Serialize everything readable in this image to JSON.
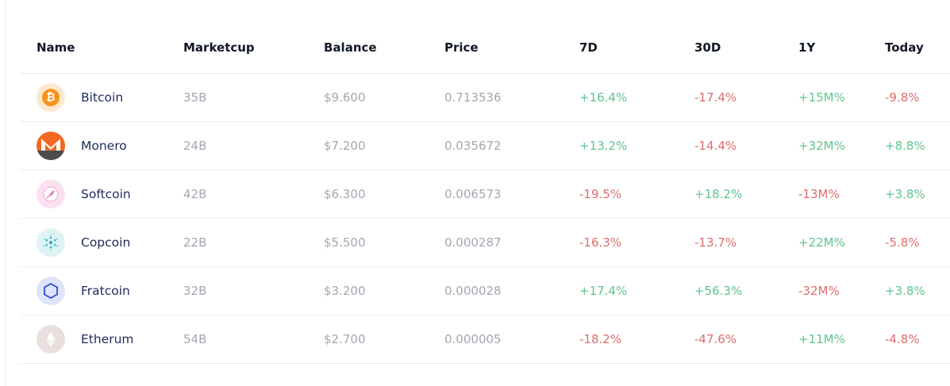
{
  "headers": {
    "name": "Name",
    "marketcup": "Marketcup",
    "balance": "Balance",
    "price": "Price",
    "d7": "7D",
    "d30": "30D",
    "y1": "1Y",
    "today": "Today"
  },
  "rows": [
    {
      "name": "Bitcoin",
      "icon": "bitcoin-icon",
      "marketcup": "35B",
      "balance": "$9.600",
      "price": "0.713536",
      "d7": "+16.4%",
      "d30": "-17.4%",
      "y1": "+15M%",
      "today": "-9.8%"
    },
    {
      "name": "Monero",
      "icon": "monero-icon",
      "marketcup": "24B",
      "balance": "$7.200",
      "price": "0.035672",
      "d7": "+13.2%",
      "d30": "-14.4%",
      "y1": "+32M%",
      "today": "+8.8%"
    },
    {
      "name": "Softcoin",
      "icon": "feather-icon",
      "marketcup": "42B",
      "balance": "$6.300",
      "price": "0.006573",
      "d7": "-19.5%",
      "d30": "+18.2%",
      "y1": "-13M%",
      "today": "+3.8%"
    },
    {
      "name": "Copcoin",
      "icon": "cardano-icon",
      "marketcup": "22B",
      "balance": "$5.500",
      "price": "0.000287",
      "d7": "-16.3%",
      "d30": "-13.7%",
      "y1": "+22M%",
      "today": "-5.8%"
    },
    {
      "name": "Fratcoin",
      "icon": "hexagon-icon",
      "marketcup": "32B",
      "balance": "$3.200",
      "price": "0.000028",
      "d7": "+17.4%",
      "d30": "+56.3%",
      "y1": "-32M%",
      "today": "+3.8%"
    },
    {
      "name": "Etherum",
      "icon": "ethereum-icon",
      "marketcup": "54B",
      "balance": "$2.700",
      "price": "0.000005",
      "d7": "-18.2%",
      "d30": "-47.6%",
      "y1": "+11M%",
      "today": "-4.8%"
    }
  ],
  "colors": {
    "positive": "#5fc48d",
    "negative": "#e06d6d",
    "bitcoin": "#f7931a",
    "monero": "#f26822"
  }
}
